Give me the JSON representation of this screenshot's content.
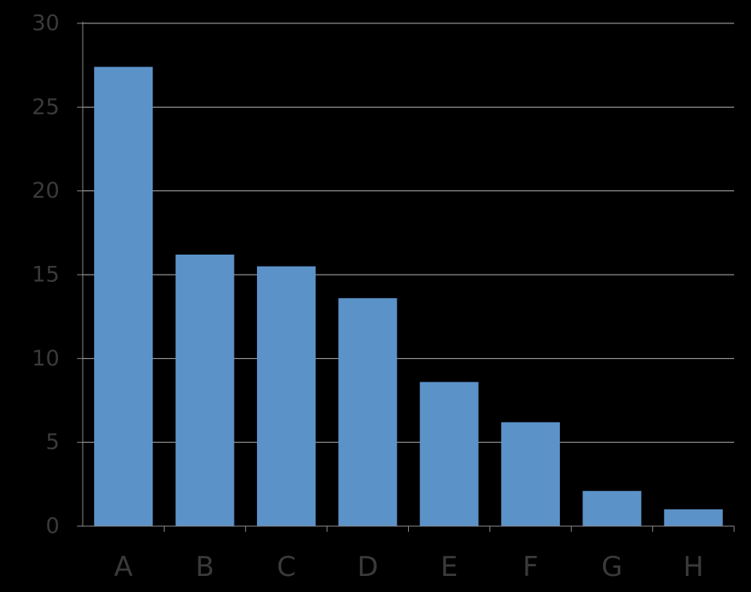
{
  "chart_data": {
    "type": "bar",
    "title": "",
    "xlabel": "",
    "ylabel": "",
    "categories": [
      "A",
      "B",
      "C",
      "D",
      "E",
      "F",
      "G",
      "H"
    ],
    "values": [
      27.4,
      16.2,
      15.5,
      13.6,
      8.6,
      6.2,
      2.1,
      1.0
    ],
    "ylim": [
      0,
      30
    ],
    "yticks": [
      0,
      5,
      10,
      15,
      20,
      25,
      30
    ],
    "grid": true,
    "legend": "none",
    "colors": {
      "bar": "#5b93c9",
      "background": "#000000",
      "gridline": "#b3b3b3",
      "axis": "#8c8c8c",
      "tick_text": "#3a3a3a"
    }
  }
}
